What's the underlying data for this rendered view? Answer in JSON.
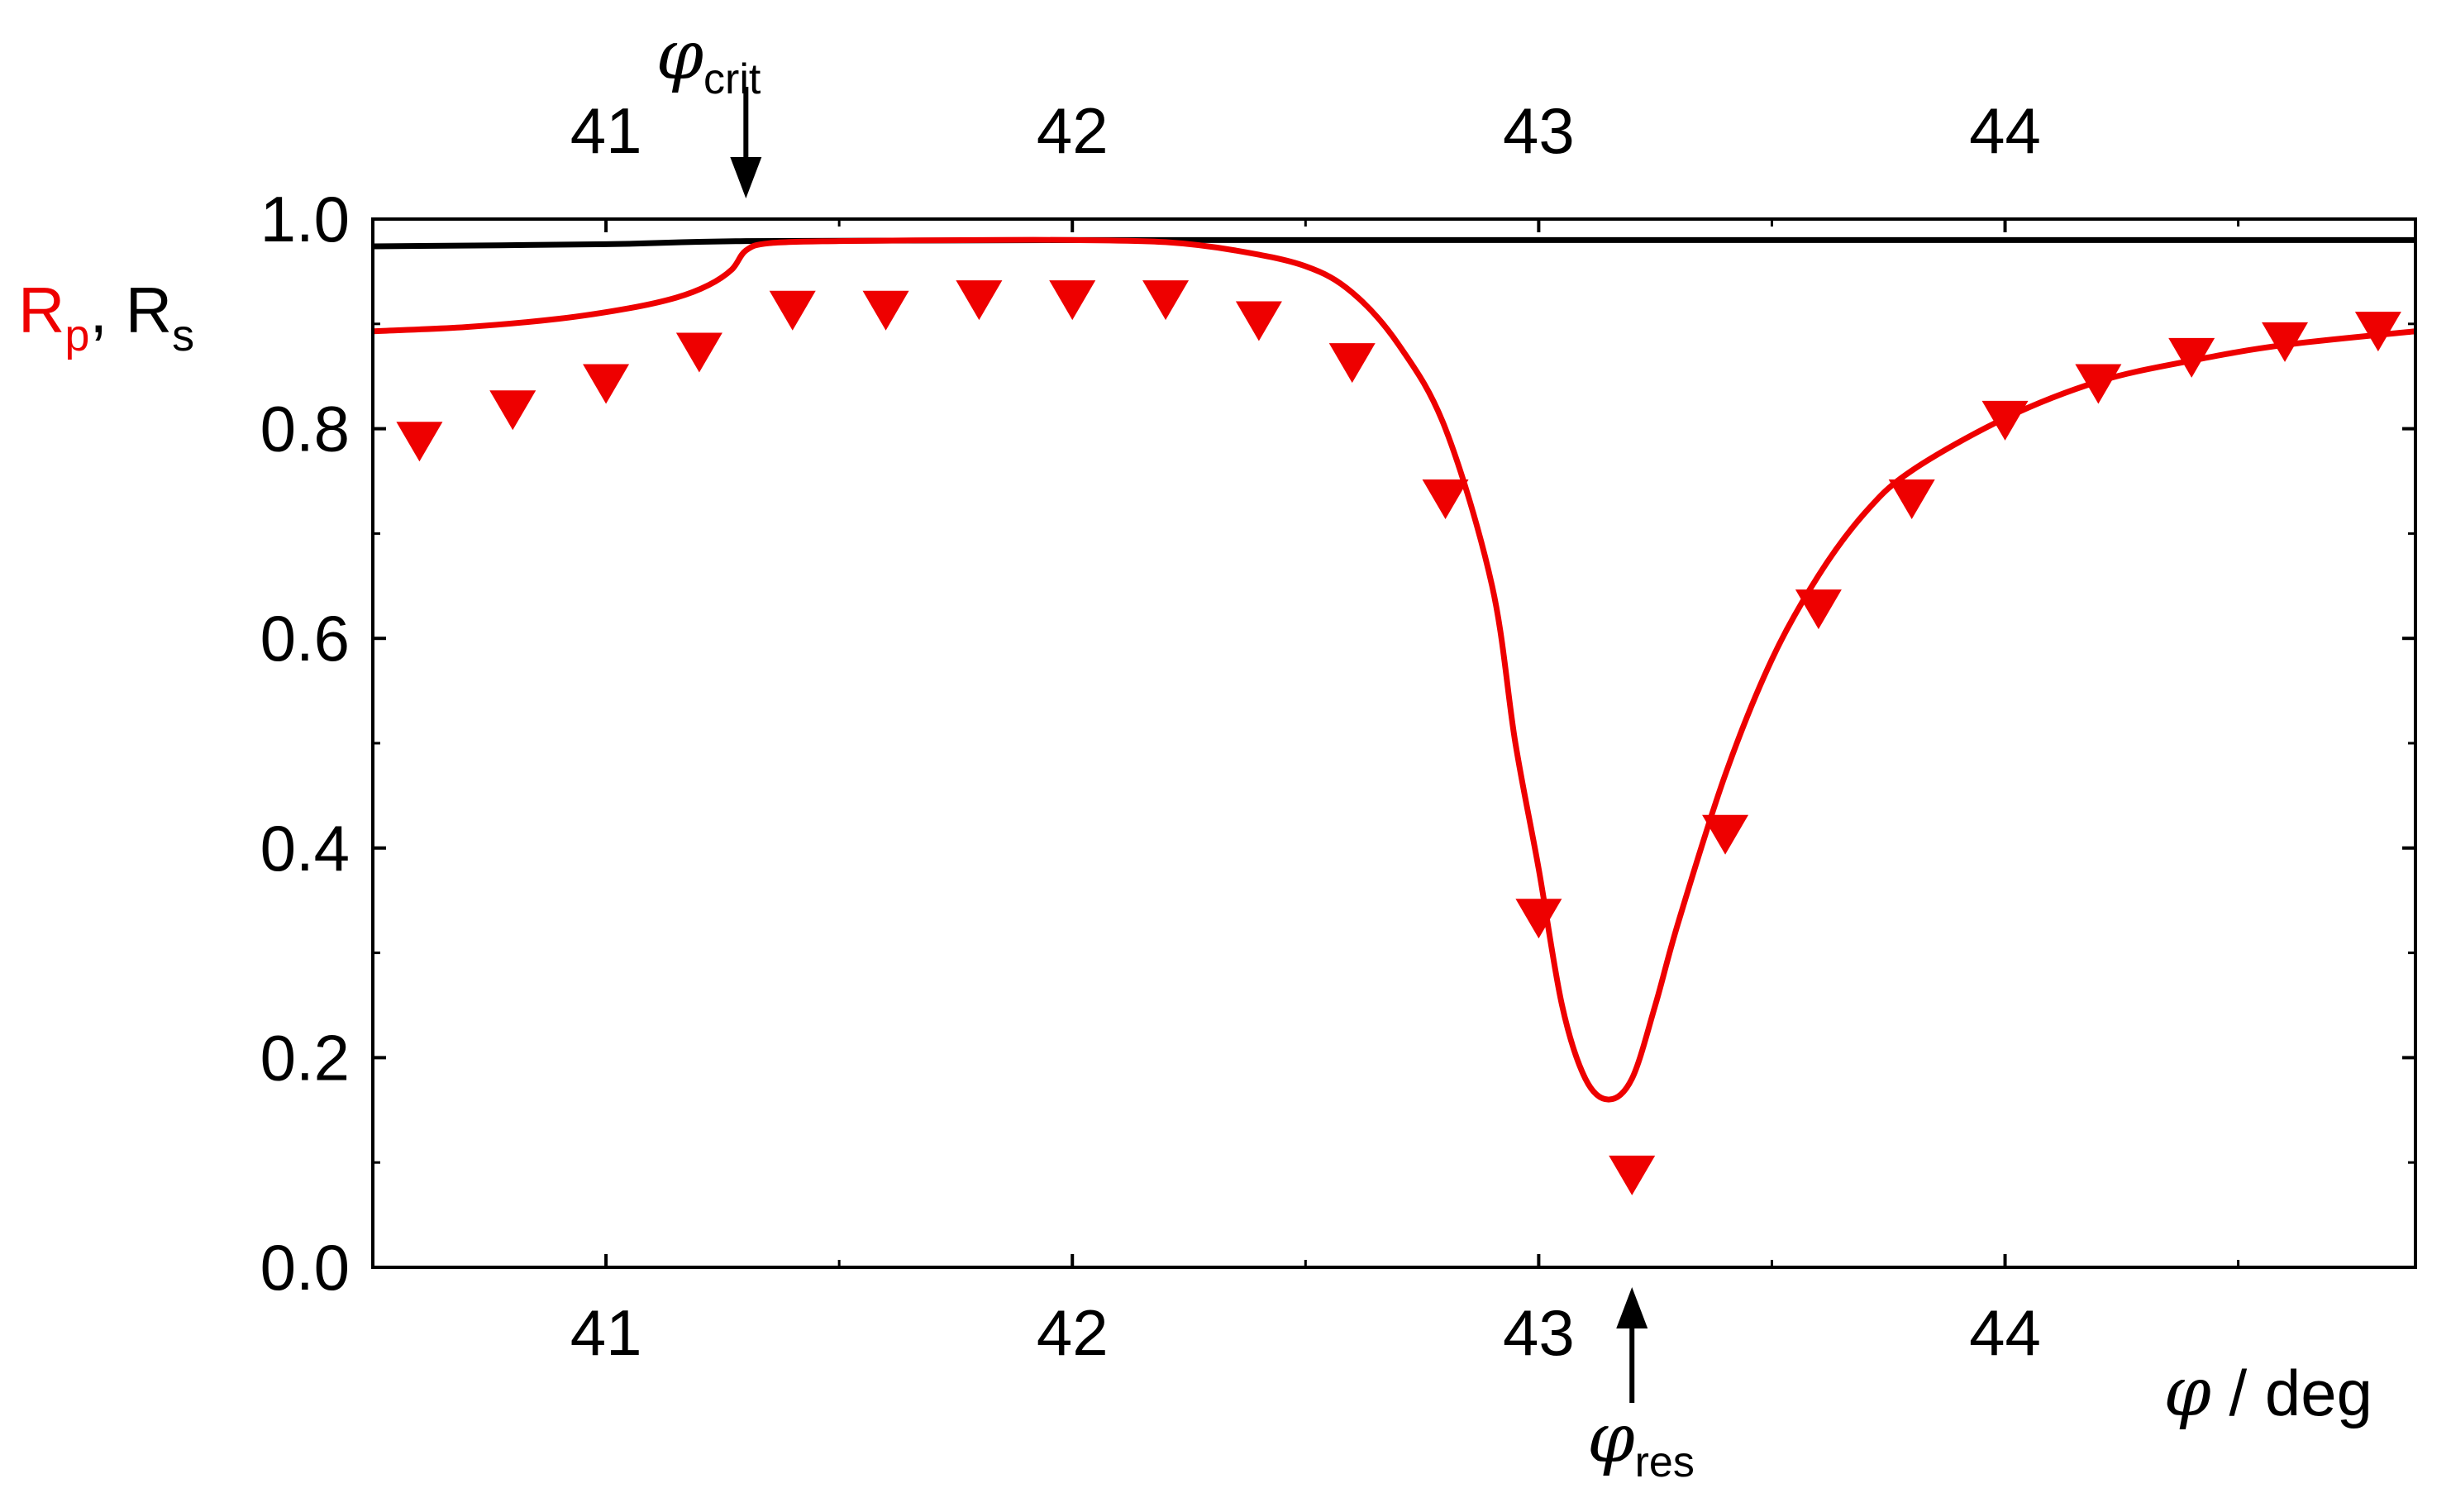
{
  "chart_data": {
    "type": "line",
    "ylabel": {
      "rp_main": "R",
      "rp_sub": "p",
      "separator": ", ",
      "rs_main": "R",
      "rs_sub": "s"
    },
    "xlabel": {
      "symbol": "φ",
      "text": " / deg"
    },
    "annotations": {
      "crit": {
        "symbol": "φ",
        "sub": "crit",
        "x": 41.3
      },
      "res": {
        "symbol": "φ",
        "sub": "res",
        "x": 43.2
      }
    },
    "xlim": [
      40.5,
      44.88
    ],
    "ylim": [
      0.0,
      1.0
    ],
    "x_ticks": [
      "41",
      "42",
      "43",
      "44"
    ],
    "x_tick_values": [
      41,
      42,
      43,
      44
    ],
    "y_ticks": [
      "0.0",
      "0.2",
      "0.4",
      "0.6",
      "0.8",
      "1.0"
    ],
    "y_tick_values": [
      0.0,
      0.2,
      0.4,
      0.6,
      0.8,
      1.0
    ],
    "colors": {
      "rp": "#ee0000",
      "rs": "#000000",
      "axis": "#000000"
    },
    "series": [
      {
        "key": "rs_curve",
        "kind": "line",
        "color": "#000000",
        "x": [
          40.5,
          41.0,
          41.3,
          42.0,
          43.0,
          44.0,
          44.88
        ],
        "y": [
          0.974,
          0.976,
          0.979,
          0.98,
          0.98,
          0.98,
          0.98
        ]
      },
      {
        "key": "rp_curve",
        "kind": "line",
        "color": "#ee0000",
        "x": [
          40.5,
          40.7,
          40.9,
          41.05,
          41.15,
          41.22,
          41.27,
          41.3,
          41.35,
          41.5,
          41.8,
          42.0,
          42.2,
          42.35,
          42.5,
          42.6,
          42.7,
          42.8,
          42.9,
          42.95,
          43.0,
          43.05,
          43.1,
          43.15,
          43.2,
          43.25,
          43.3,
          43.4,
          43.5,
          43.6,
          43.7,
          43.8,
          44.0,
          44.2,
          44.4,
          44.6,
          44.88
        ],
        "y": [
          0.893,
          0.897,
          0.905,
          0.915,
          0.925,
          0.937,
          0.952,
          0.97,
          0.977,
          0.979,
          0.98,
          0.98,
          0.978,
          0.97,
          0.955,
          0.93,
          0.88,
          0.8,
          0.65,
          0.5,
          0.38,
          0.25,
          0.18,
          0.16,
          0.18,
          0.25,
          0.33,
          0.47,
          0.58,
          0.66,
          0.72,
          0.76,
          0.81,
          0.845,
          0.865,
          0.88,
          0.893
        ]
      },
      {
        "key": "rp_points",
        "kind": "scatter",
        "marker": "triangle-down",
        "color": "#ee0000",
        "x": [
          40.6,
          40.8,
          41.0,
          41.2,
          41.4,
          41.6,
          41.8,
          42.0,
          42.2,
          42.4,
          42.6,
          42.8,
          43.0,
          43.2,
          43.4,
          43.6,
          43.8,
          44.0,
          44.2,
          44.4,
          44.6,
          44.8
        ],
        "y": [
          0.79,
          0.82,
          0.845,
          0.875,
          0.915,
          0.915,
          0.925,
          0.925,
          0.925,
          0.905,
          0.865,
          0.735,
          0.335,
          0.09,
          0.415,
          0.63,
          0.735,
          0.81,
          0.845,
          0.87,
          0.885,
          0.895
        ]
      }
    ]
  }
}
